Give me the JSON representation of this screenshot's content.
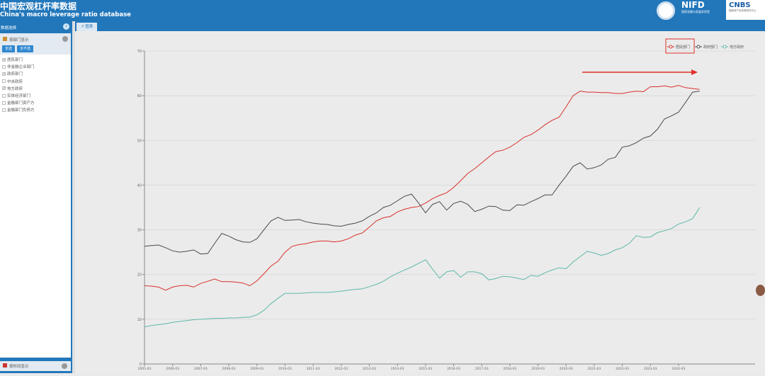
{
  "header": {
    "title_cn": "中国宏观杠杆率数据",
    "title_en": "China's macro leverage ratio database",
    "logo_nifd": "NIFD",
    "logo_nifd_sub": "国家金融与发展实验室",
    "logo_cnbs": "CNBS",
    "logo_cnbs_sub": "国家资产负债表研究中心"
  },
  "sidebar": {
    "title": "数据选择",
    "panel_title": "按部门显示",
    "select_all": "全选",
    "select_none": "全不选",
    "items": [
      {
        "label": "居民部门",
        "checked": true
      },
      {
        "label": "非金融企业部门",
        "checked": false
      },
      {
        "label": "政府部门",
        "checked": true
      },
      {
        "label": "中央政府",
        "checked": false
      },
      {
        "label": "地方政府",
        "checked": true
      },
      {
        "label": "实体经济部门",
        "checked": false
      },
      {
        "label": "金融部门资产方",
        "checked": false
      },
      {
        "label": "金融部门负债方",
        "checked": false
      }
    ],
    "time_panel": "按时间显示"
  },
  "tab": {
    "label": "图表"
  },
  "chart_data": {
    "type": "line",
    "title": "",
    "xlabel": "",
    "ylabel": "",
    "ylim": [
      0,
      70
    ],
    "yticks": [
      0,
      10,
      20,
      30,
      40,
      50,
      60,
      70
    ],
    "grid": true,
    "legend": "top-right",
    "x_start": "2005-03",
    "x_end": "2024-12",
    "x_step_months": 3,
    "xticks": [
      "2005-03",
      "2006-03",
      "2007-03",
      "2008-03",
      "2009-03",
      "2010-03",
      "2011-03",
      "2012-03",
      "2013-03",
      "2014-03",
      "2015-03",
      "2016-03",
      "2017-03",
      "2018-03",
      "2019-03",
      "2020-03",
      "2021-03",
      "2022-03",
      "2023-03",
      "2024-03"
    ],
    "series": [
      {
        "name": "居民部门",
        "color": "#d9302b",
        "highlighted": true,
        "values": [
          17.5,
          17.4,
          17.2,
          16.5,
          17.2,
          17.5,
          17.6,
          17.2,
          18.0,
          18.5,
          19.0,
          18.4,
          18.4,
          18.3,
          18.1,
          17.5,
          18.6,
          20.2,
          21.9,
          23.0,
          25.0,
          26.3,
          26.7,
          26.9,
          27.3,
          27.5,
          27.5,
          27.3,
          27.5,
          28.0,
          28.8,
          29.3,
          30.6,
          32.0,
          32.7,
          33.0,
          34.0,
          34.6,
          35.0,
          35.2,
          36.0,
          37.0,
          37.7,
          38.3,
          39.5,
          41.0,
          42.6,
          43.7,
          45.0,
          46.3,
          47.5,
          47.8,
          48.5,
          49.5,
          50.7,
          51.3,
          52.3,
          53.5,
          54.5,
          55.2,
          57.5,
          60.0,
          61.0,
          60.8,
          60.8,
          60.7,
          60.7,
          60.5,
          60.5,
          60.8,
          61.0,
          60.9,
          62.0,
          62.0,
          62.2,
          61.9,
          62.3,
          61.8,
          61.6,
          61.4
        ]
      },
      {
        "name": "政府部门",
        "color": "#4a4a4a",
        "values": [
          26.3,
          26.5,
          26.6,
          26.0,
          25.3,
          25.0,
          25.2,
          25.5,
          24.6,
          24.7,
          27.0,
          29.2,
          28.6,
          27.8,
          27.3,
          27.2,
          28.0,
          30.0,
          32.0,
          32.8,
          32.1,
          32.2,
          32.3,
          31.8,
          31.5,
          31.3,
          31.2,
          30.9,
          30.8,
          31.2,
          31.5,
          32.0,
          33.0,
          33.8,
          35.0,
          35.5,
          36.5,
          37.5,
          38.0,
          36.0,
          33.8,
          35.7,
          36.3,
          34.4,
          35.9,
          36.4,
          35.7,
          34.1,
          34.6,
          35.3,
          35.2,
          34.4,
          34.3,
          35.6,
          35.5,
          36.3,
          37.0,
          37.8,
          37.8,
          40.0,
          42.0,
          44.2,
          45.0,
          43.6,
          43.9,
          44.5,
          45.8,
          46.2,
          48.5,
          48.8,
          49.5,
          50.5,
          51.0,
          52.5,
          54.8,
          55.5,
          56.3,
          58.5,
          60.8,
          61.0
        ]
      },
      {
        "name": "地方政府",
        "color": "#5fb8a8",
        "values": [
          8.3,
          8.6,
          8.8,
          9.0,
          9.3,
          9.5,
          9.7,
          9.9,
          10.0,
          10.1,
          10.2,
          10.2,
          10.3,
          10.3,
          10.4,
          10.5,
          11.0,
          12.0,
          13.5,
          14.7,
          15.8,
          15.8,
          15.8,
          15.9,
          16.0,
          16.0,
          16.0,
          16.1,
          16.3,
          16.5,
          16.7,
          16.8,
          17.3,
          17.8,
          18.5,
          19.5,
          20.3,
          21.0,
          21.7,
          22.5,
          23.3,
          21.2,
          19.2,
          20.6,
          20.9,
          19.4,
          20.6,
          20.6,
          20.2,
          18.8,
          19.1,
          19.6,
          19.5,
          19.2,
          18.9,
          19.8,
          19.6,
          20.4,
          21.0,
          21.5,
          21.3,
          22.8,
          24.0,
          25.2,
          24.8,
          24.3,
          24.7,
          25.5,
          26.0,
          27.0,
          28.7,
          28.3,
          28.4,
          29.4,
          29.8,
          30.3,
          31.3,
          31.8,
          32.5,
          35.0
        ]
      }
    ]
  }
}
